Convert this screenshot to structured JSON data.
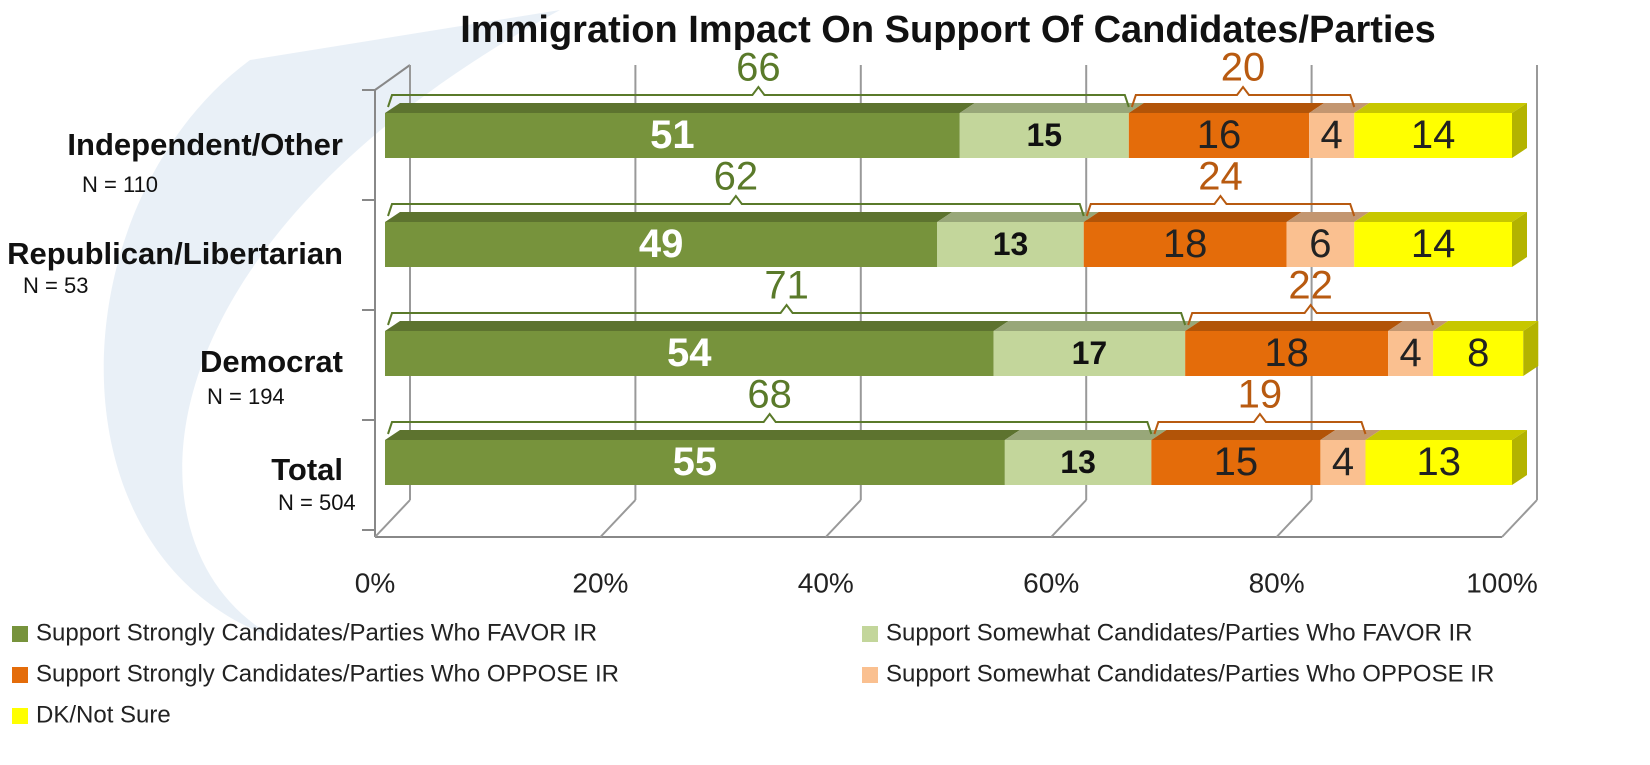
{
  "chart_data": {
    "type": "stacked-bar-3d",
    "title": "Immigration Impact On Support Of Candidates/Parties",
    "categories": [
      "Independent/Other",
      "Republican/Libertarian",
      "Democrat",
      "Total"
    ],
    "sample_sizes": [
      "N = 110",
      "N = 53",
      "N = 194",
      "N = 504"
    ],
    "series": [
      {
        "name": "Support Strongly Candidates/Parties Who FAVOR IR",
        "color": "#77933c",
        "values": [
          51,
          49,
          54,
          55
        ]
      },
      {
        "name": "Support Somewhat Candidates/Parties Who FAVOR IR",
        "color": "#c3d69b",
        "values": [
          15,
          13,
          17,
          13
        ]
      },
      {
        "name": "Support Strongly Candidates/Parties Who OPPOSE IR",
        "color": "#e46c0a",
        "values": [
          16,
          18,
          18,
          15
        ]
      },
      {
        "name": "Support Somewhat Candidates/Parties Who OPPOSE IR",
        "color": "#fac090",
        "values": [
          4,
          6,
          4,
          4
        ]
      },
      {
        "name": "DK/Not Sure",
        "color": "#ffff00",
        "values": [
          14,
          14,
          8,
          13
        ]
      }
    ],
    "favor_totals": {
      "color": "#5a7a2a",
      "values": [
        66,
        62,
        71,
        68
      ]
    },
    "oppose_totals": {
      "color": "#b85a10",
      "values": [
        20,
        24,
        22,
        19
      ]
    },
    "xlim": [
      0,
      100
    ],
    "xticks": [
      {
        "value": 0,
        "label": "0%"
      },
      {
        "value": 20,
        "label": "20%"
      },
      {
        "value": 40,
        "label": "40%"
      },
      {
        "value": 60,
        "label": "60%"
      },
      {
        "value": 80,
        "label": "80%"
      },
      {
        "value": 100,
        "label": "100%"
      }
    ],
    "grid": true
  }
}
